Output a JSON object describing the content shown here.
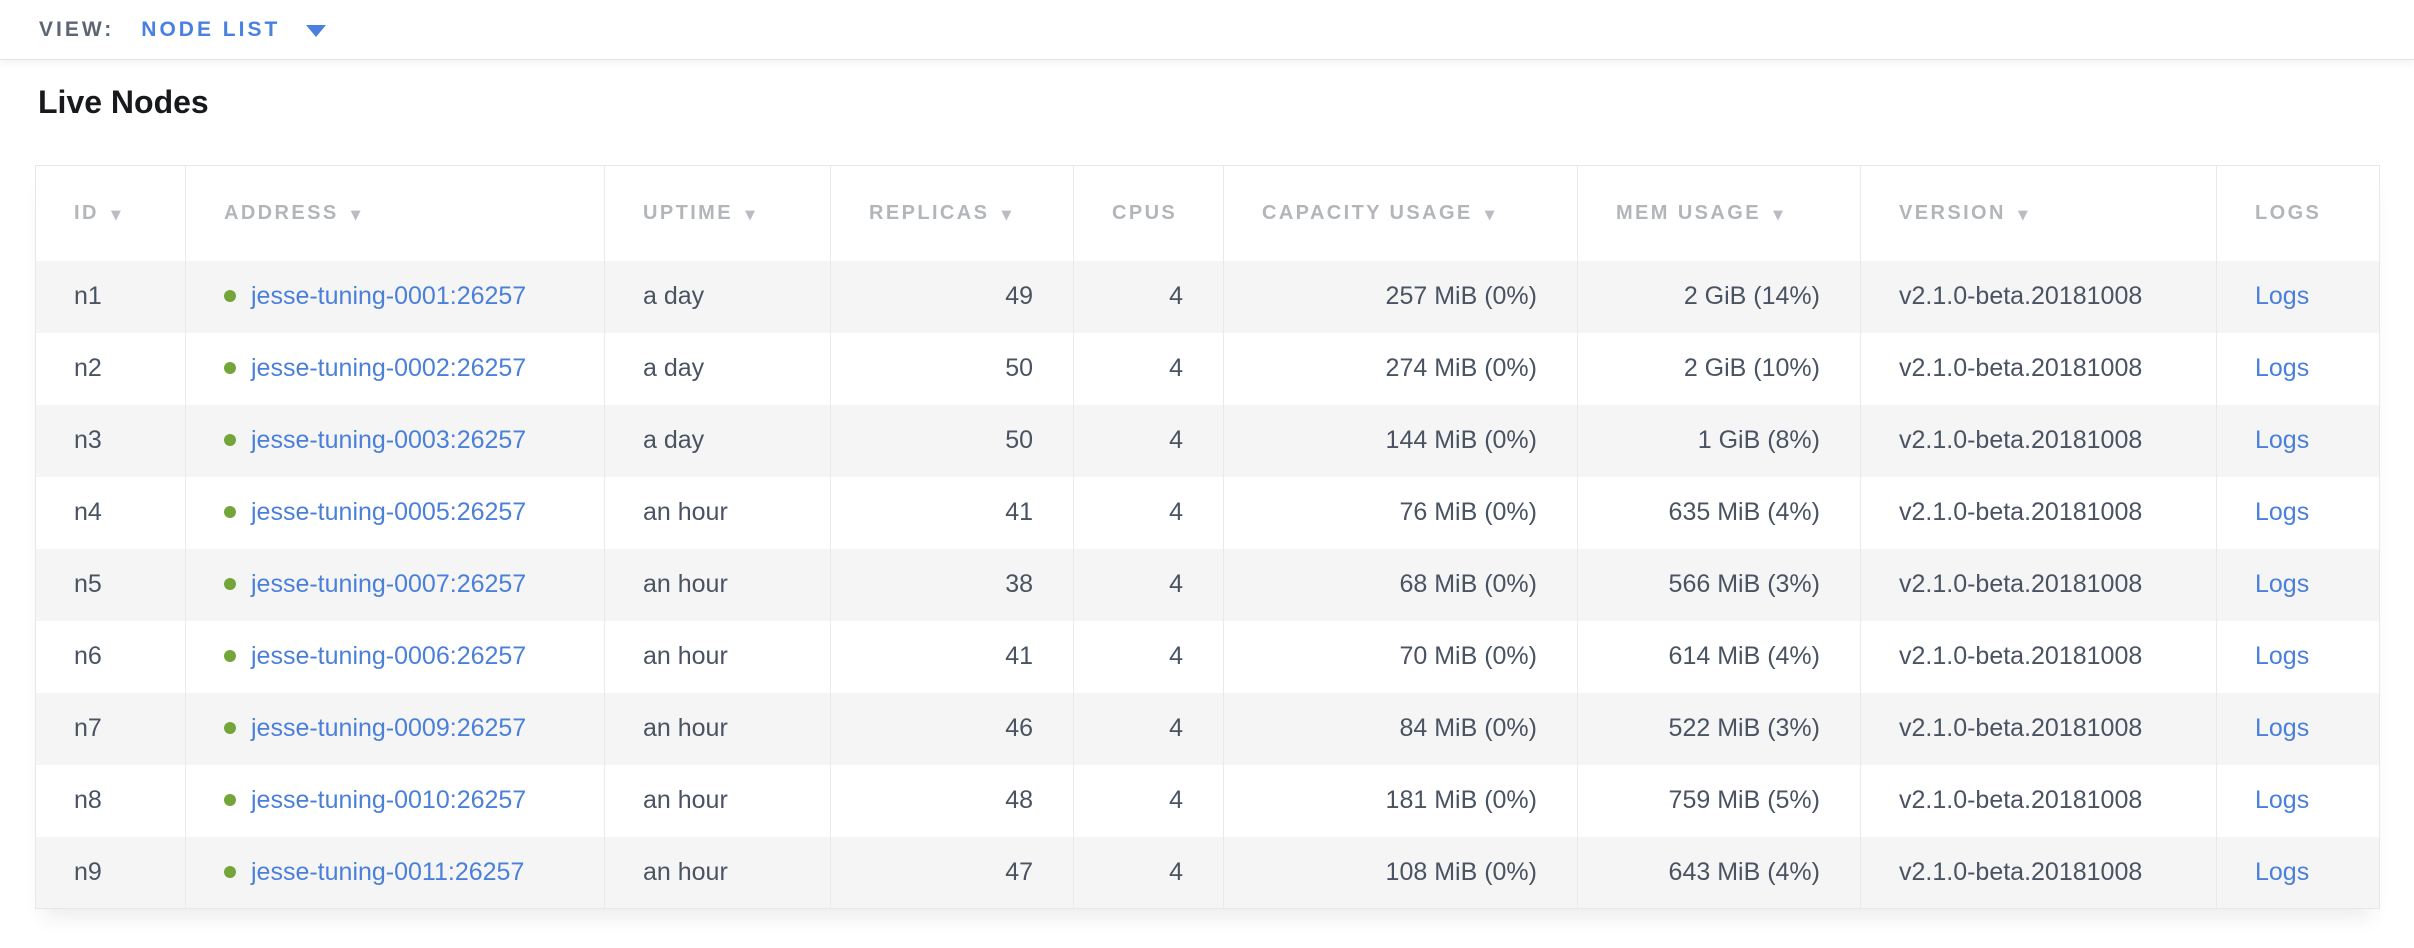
{
  "view_bar": {
    "label": "VIEW:",
    "selected": "NODE LIST"
  },
  "page": {
    "title": "Live Nodes"
  },
  "table": {
    "sort_arrow_glyph": "▼",
    "columns": [
      {
        "key": "id",
        "label": "ID",
        "sortable": true,
        "align": "left",
        "type": "text"
      },
      {
        "key": "address",
        "label": "ADDRESS",
        "sortable": true,
        "align": "left",
        "type": "node-link"
      },
      {
        "key": "uptime",
        "label": "UPTIME",
        "sortable": true,
        "align": "left",
        "type": "text"
      },
      {
        "key": "replicas",
        "label": "REPLICAS",
        "sortable": true,
        "align": "right",
        "type": "text"
      },
      {
        "key": "cpus",
        "label": "CPUS",
        "sortable": false,
        "align": "right",
        "type": "text"
      },
      {
        "key": "capacity_usage",
        "label": "CAPACITY USAGE",
        "sortable": true,
        "align": "right",
        "type": "text"
      },
      {
        "key": "mem_usage",
        "label": "MEM USAGE",
        "sortable": true,
        "align": "right",
        "type": "text"
      },
      {
        "key": "version",
        "label": "VERSION",
        "sortable": true,
        "align": "left",
        "type": "text"
      },
      {
        "key": "logs",
        "label": "LOGS",
        "sortable": false,
        "align": "left",
        "type": "link"
      }
    ],
    "rows": [
      {
        "id": "n1",
        "address": "jesse-tuning-0001:26257",
        "status": "live",
        "uptime": "a day",
        "replicas": "49",
        "cpus": "4",
        "capacity_usage": "257 MiB (0%)",
        "mem_usage": "2 GiB (14%)",
        "version": "v2.1.0-beta.20181008",
        "logs": "Logs"
      },
      {
        "id": "n2",
        "address": "jesse-tuning-0002:26257",
        "status": "live",
        "uptime": "a day",
        "replicas": "50",
        "cpus": "4",
        "capacity_usage": "274 MiB (0%)",
        "mem_usage": "2 GiB (10%)",
        "version": "v2.1.0-beta.20181008",
        "logs": "Logs"
      },
      {
        "id": "n3",
        "address": "jesse-tuning-0003:26257",
        "status": "live",
        "uptime": "a day",
        "replicas": "50",
        "cpus": "4",
        "capacity_usage": "144 MiB (0%)",
        "mem_usage": "1 GiB (8%)",
        "version": "v2.1.0-beta.20181008",
        "logs": "Logs"
      },
      {
        "id": "n4",
        "address": "jesse-tuning-0005:26257",
        "status": "live",
        "uptime": "an hour",
        "replicas": "41",
        "cpus": "4",
        "capacity_usage": "76 MiB (0%)",
        "mem_usage": "635 MiB (4%)",
        "version": "v2.1.0-beta.20181008",
        "logs": "Logs"
      },
      {
        "id": "n5",
        "address": "jesse-tuning-0007:26257",
        "status": "live",
        "uptime": "an hour",
        "replicas": "38",
        "cpus": "4",
        "capacity_usage": "68 MiB (0%)",
        "mem_usage": "566 MiB (3%)",
        "version": "v2.1.0-beta.20181008",
        "logs": "Logs"
      },
      {
        "id": "n6",
        "address": "jesse-tuning-0006:26257",
        "status": "live",
        "uptime": "an hour",
        "replicas": "41",
        "cpus": "4",
        "capacity_usage": "70 MiB (0%)",
        "mem_usage": "614 MiB (4%)",
        "version": "v2.1.0-beta.20181008",
        "logs": "Logs"
      },
      {
        "id": "n7",
        "address": "jesse-tuning-0009:26257",
        "status": "live",
        "uptime": "an hour",
        "replicas": "46",
        "cpus": "4",
        "capacity_usage": "84 MiB (0%)",
        "mem_usage": "522 MiB (3%)",
        "version": "v2.1.0-beta.20181008",
        "logs": "Logs"
      },
      {
        "id": "n8",
        "address": "jesse-tuning-0010:26257",
        "status": "live",
        "uptime": "an hour",
        "replicas": "48",
        "cpus": "4",
        "capacity_usage": "181 MiB (0%)",
        "mem_usage": "759 MiB (5%)",
        "version": "v2.1.0-beta.20181008",
        "logs": "Logs"
      },
      {
        "id": "n9",
        "address": "jesse-tuning-0011:26257",
        "status": "live",
        "uptime": "an hour",
        "replicas": "47",
        "cpus": "4",
        "capacity_usage": "108 MiB (0%)",
        "mem_usage": "643 MiB (4%)",
        "version": "v2.1.0-beta.20181008",
        "logs": "Logs"
      }
    ]
  },
  "colors": {
    "link_blue": "#4a80d9",
    "view_blue": "#4a80e0",
    "live_green": "#74a53a",
    "header_gray": "#b2b6bb",
    "text_slate": "#4a5362",
    "row_stripe": "#f5f5f6",
    "border_gray": "#e7e7e8"
  }
}
